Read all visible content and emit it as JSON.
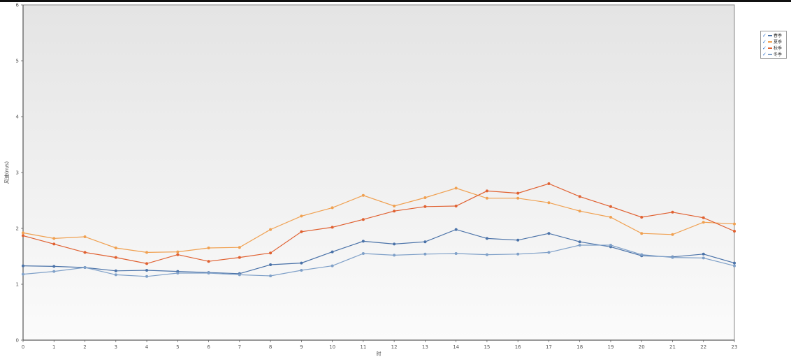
{
  "chart_data": {
    "type": "line",
    "title": "",
    "xlabel": "时",
    "ylabel": "风速(m/s)",
    "x": [
      0,
      1,
      2,
      3,
      4,
      5,
      6,
      7,
      8,
      9,
      10,
      11,
      12,
      13,
      14,
      15,
      16,
      17,
      18,
      19,
      20,
      21,
      22,
      23
    ],
    "xlim": [
      0,
      23
    ],
    "ylim": [
      0,
      6
    ],
    "yticks": [
      0,
      1,
      2,
      3,
      4,
      5,
      6
    ],
    "grid": false,
    "legend_position": "right",
    "series": [
      {
        "name": "春季",
        "color": "#4a72a8",
        "values": [
          1.33,
          1.32,
          1.3,
          1.24,
          1.25,
          1.23,
          1.21,
          1.19,
          1.35,
          1.38,
          1.58,
          1.77,
          1.72,
          1.76,
          1.98,
          1.82,
          1.79,
          1.91,
          1.76,
          1.67,
          1.51,
          1.49,
          1.54,
          1.38
        ]
      },
      {
        "name": "夏季",
        "color": "#f0a050",
        "values": [
          1.92,
          1.82,
          1.85,
          1.65,
          1.57,
          1.58,
          1.65,
          1.66,
          1.98,
          2.22,
          2.37,
          2.59,
          2.4,
          2.55,
          2.72,
          2.54,
          2.54,
          2.46,
          2.31,
          2.2,
          1.91,
          1.89,
          2.11,
          2.08
        ]
      },
      {
        "name": "秋季",
        "color": "#e06030",
        "values": [
          1.87,
          1.72,
          1.57,
          1.48,
          1.37,
          1.53,
          1.41,
          1.48,
          1.56,
          1.94,
          2.02,
          2.16,
          2.31,
          2.39,
          2.4,
          2.67,
          2.63,
          2.8,
          2.57,
          2.39,
          2.2,
          2.29,
          2.19,
          1.95
        ]
      },
      {
        "name": "冬季",
        "color": "#7fa0c8",
        "values": [
          1.18,
          1.23,
          1.3,
          1.17,
          1.14,
          1.2,
          1.2,
          1.17,
          1.15,
          1.25,
          1.33,
          1.55,
          1.52,
          1.54,
          1.55,
          1.53,
          1.54,
          1.57,
          1.7,
          1.7,
          1.53,
          1.48,
          1.47,
          1.33
        ]
      }
    ]
  }
}
